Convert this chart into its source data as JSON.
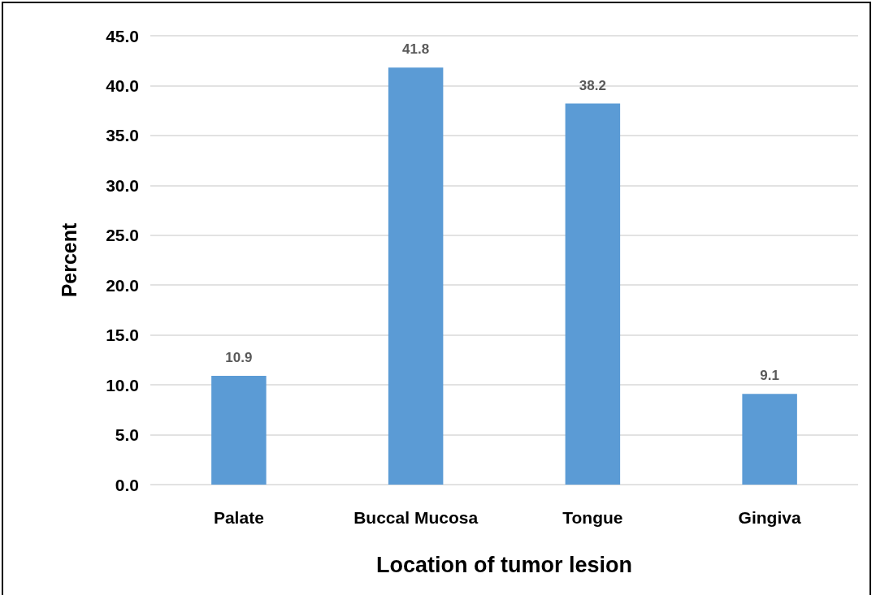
{
  "chart_data": {
    "type": "bar",
    "xlabel": "Location of tumor lesion",
    "ylabel": "Percent",
    "categories": [
      "Palate",
      "Buccal Mucosa",
      "Tongue",
      "Gingiva"
    ],
    "values": [
      10.9,
      41.8,
      38.2,
      9.1
    ],
    "color": "#5b9bd5",
    "ylim": [
      0,
      45
    ],
    "yticks": [
      {
        "value": 0,
        "label": "0.0"
      },
      {
        "value": 5,
        "label": "5.0"
      },
      {
        "value": 10,
        "label": "10.0"
      },
      {
        "value": 15,
        "label": "15.0"
      },
      {
        "value": 20,
        "label": "20.0"
      },
      {
        "value": 25,
        "label": "25.0"
      },
      {
        "value": 30,
        "label": "30.0"
      },
      {
        "value": 35,
        "label": "35.0"
      },
      {
        "value": 40,
        "label": "40.0"
      },
      {
        "value": 45,
        "label": "45.0"
      }
    ],
    "grid": "y",
    "data_labels": true
  }
}
